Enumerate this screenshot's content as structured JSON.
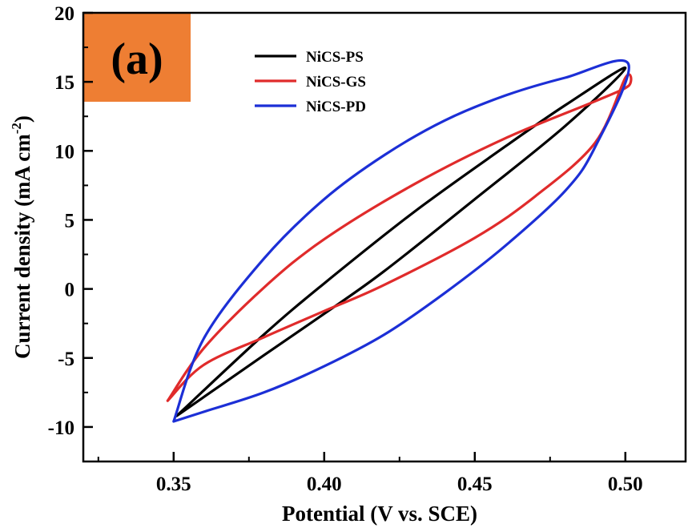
{
  "chart_data": {
    "type": "line",
    "panel_label": "(a)",
    "panel_color": "#EE7E33",
    "xlabel": "Potential (V vs. SCE)",
    "ylabel_main": "Current density (mA cm",
    "ylabel_sup": "-2",
    "ylabel_end": ")",
    "xlim": [
      0.32,
      0.52
    ],
    "ylim": [
      -12.5,
      20
    ],
    "xticks": [
      0.35,
      0.4,
      0.45,
      0.5
    ],
    "xtick_labels": [
      "0.35",
      "0.40",
      "0.45",
      "0.50"
    ],
    "yticks": [
      -10,
      -5,
      0,
      5,
      10,
      15,
      20
    ],
    "ytick_labels": [
      "-10",
      "-5",
      "0",
      "5",
      "10",
      "15",
      "20"
    ],
    "grid": false,
    "legend_position": "top-center",
    "series": [
      {
        "name": "NiCS-PS",
        "color": "#000000",
        "points": [
          [
            0.351,
            -9.2
          ],
          [
            0.38,
            -3.3
          ],
          [
            0.4,
            0.4
          ],
          [
            0.43,
            5.6
          ],
          [
            0.46,
            10.3
          ],
          [
            0.48,
            13.3
          ],
          [
            0.5,
            16.0
          ],
          [
            0.48,
            11.8
          ],
          [
            0.45,
            6.5
          ],
          [
            0.42,
            1.3
          ],
          [
            0.4,
            -1.8
          ],
          [
            0.38,
            -4.8
          ],
          [
            0.351,
            -9.2
          ]
        ]
      },
      {
        "name": "NiCS-GS",
        "color": "#E02B2B",
        "points": [
          [
            0.348,
            -8.1
          ],
          [
            0.36,
            -4.3
          ],
          [
            0.38,
            0.1
          ],
          [
            0.4,
            3.6
          ],
          [
            0.43,
            7.6
          ],
          [
            0.46,
            10.9
          ],
          [
            0.49,
            13.6
          ],
          [
            0.501,
            14.7
          ],
          [
            0.5,
            15.3
          ],
          [
            0.49,
            10.6
          ],
          [
            0.47,
            6.7
          ],
          [
            0.45,
            3.7
          ],
          [
            0.42,
            0.3
          ],
          [
            0.4,
            -1.6
          ],
          [
            0.38,
            -3.5
          ],
          [
            0.36,
            -5.5
          ],
          [
            0.348,
            -8.1
          ]
        ]
      },
      {
        "name": "NiCS-PD",
        "color": "#1C2FD6",
        "points": [
          [
            0.35,
            -9.6
          ],
          [
            0.36,
            -3.6
          ],
          [
            0.38,
            2.2
          ],
          [
            0.4,
            6.5
          ],
          [
            0.42,
            9.7
          ],
          [
            0.44,
            12.2
          ],
          [
            0.46,
            14.0
          ],
          [
            0.48,
            15.3
          ],
          [
            0.501,
            16.3
          ],
          [
            0.49,
            10.3
          ],
          [
            0.48,
            7.1
          ],
          [
            0.46,
            3.1
          ],
          [
            0.44,
            -0.3
          ],
          [
            0.42,
            -3.3
          ],
          [
            0.4,
            -5.6
          ],
          [
            0.38,
            -7.5
          ],
          [
            0.36,
            -8.9
          ],
          [
            0.35,
            -9.6
          ]
        ]
      }
    ]
  }
}
